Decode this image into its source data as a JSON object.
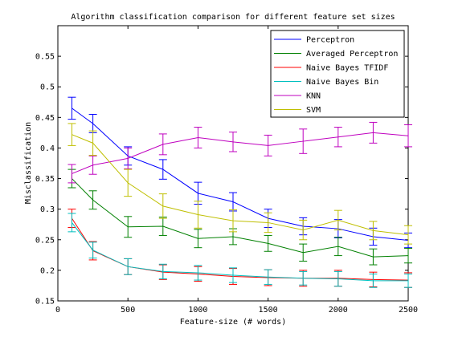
{
  "chart_data": {
    "type": "line",
    "title": "Algorithm classification comparison for different feature set sizes",
    "xlabel": "Feature-size (# words)",
    "ylabel": "Misclassification",
    "xlim": [
      0,
      2500
    ],
    "ylim": [
      0.15,
      0.6
    ],
    "xticks": [
      0,
      500,
      1000,
      1500,
      2000,
      2500
    ],
    "yticks": [
      0.15,
      0.2,
      0.25,
      0.3,
      0.35,
      0.4,
      0.45,
      0.5,
      0.55
    ],
    "grid": false,
    "legend_position": "top-right",
    "x": [
      100,
      250,
      500,
      750,
      1000,
      1250,
      1500,
      1750,
      2000,
      2250,
      2500
    ],
    "series": [
      {
        "name": "Perceptron",
        "color": "#0000ff",
        "values": [
          0.465,
          0.44,
          0.387,
          0.365,
          0.326,
          0.312,
          0.285,
          0.272,
          0.268,
          0.255,
          0.249
        ],
        "errors": [
          0.018,
          0.015,
          0.015,
          0.016,
          0.018,
          0.015,
          0.015,
          0.014,
          0.015,
          0.014,
          0.012
        ]
      },
      {
        "name": "Averaged Perceptron",
        "color": "#008000",
        "values": [
          0.35,
          0.315,
          0.271,
          0.272,
          0.252,
          0.255,
          0.244,
          0.229,
          0.239,
          0.222,
          0.224
        ],
        "errors": [
          0.015,
          0.015,
          0.017,
          0.015,
          0.015,
          0.013,
          0.013,
          0.014,
          0.015,
          0.013,
          0.012
        ]
      },
      {
        "name": "Naive Bayes TFIDF",
        "color": "#ff0000",
        "values": [
          0.285,
          0.232,
          0.206,
          0.197,
          0.194,
          0.19,
          0.188,
          0.187,
          0.187,
          0.185,
          0.184
        ],
        "errors": [
          0.015,
          0.015,
          0.013,
          0.012,
          0.012,
          0.013,
          0.013,
          0.013,
          0.013,
          0.012,
          0.012
        ]
      },
      {
        "name": "Naive Bayes Bin",
        "color": "#00bfbf",
        "values": [
          0.278,
          0.233,
          0.206,
          0.198,
          0.196,
          0.192,
          0.189,
          0.187,
          0.186,
          0.183,
          0.183
        ],
        "errors": [
          0.015,
          0.013,
          0.013,
          0.012,
          0.012,
          0.012,
          0.012,
          0.011,
          0.012,
          0.011,
          0.011
        ]
      },
      {
        "name": "KNN",
        "color": "#bf00bf",
        "values": [
          0.358,
          0.372,
          0.383,
          0.406,
          0.417,
          0.41,
          0.404,
          0.411,
          0.418,
          0.425,
          0.42
        ],
        "errors": [
          0.015,
          0.015,
          0.017,
          0.017,
          0.017,
          0.016,
          0.017,
          0.02,
          0.016,
          0.017,
          0.018
        ]
      },
      {
        "name": "SVM",
        "color": "#bfbf00",
        "values": [
          0.422,
          0.408,
          0.343,
          0.305,
          0.291,
          0.281,
          0.278,
          0.266,
          0.282,
          0.265,
          0.258
        ],
        "errors": [
          0.018,
          0.02,
          0.022,
          0.02,
          0.022,
          0.018,
          0.016,
          0.016,
          0.016,
          0.015,
          0.015
        ]
      }
    ]
  }
}
